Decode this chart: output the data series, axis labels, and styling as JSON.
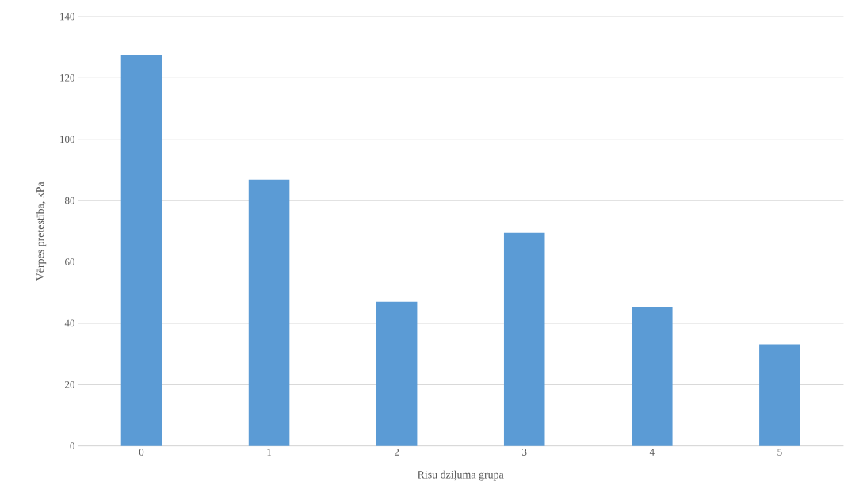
{
  "chart_data": {
    "type": "bar",
    "xlabel": "Risu dziļuma grupa",
    "ylabel": "Vērpes pretestība, kPa",
    "categories": [
      "0",
      "1",
      "2",
      "3",
      "4",
      "5"
    ],
    "values": [
      127.4,
      86.8,
      47.0,
      69.5,
      45.2,
      33.1
    ],
    "color": "#5b9bd5",
    "ylim": [
      0,
      140
    ],
    "yticks": [
      0,
      20,
      40,
      60,
      80,
      100,
      120,
      140
    ],
    "grid": "y"
  }
}
